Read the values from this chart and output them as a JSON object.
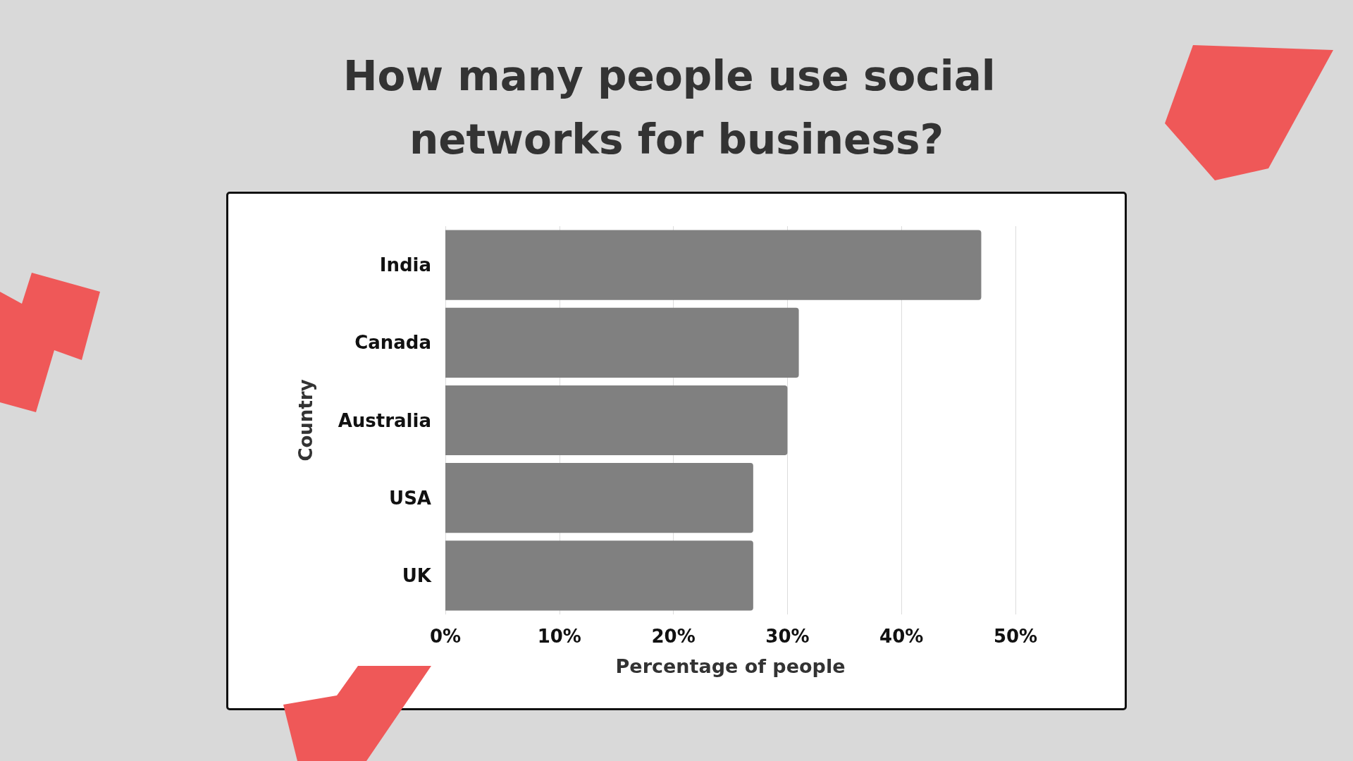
{
  "chart_data": {
    "type": "bar",
    "orientation": "horizontal",
    "title": "How many people use social networks for business?",
    "xlabel": "Percentage of people",
    "ylabel": "Country",
    "categories": [
      "India",
      "Canada",
      "Australia",
      "USA",
      "UK"
    ],
    "values": [
      47,
      31,
      30,
      27,
      27
    ],
    "color": "#808080",
    "xlim": [
      0,
      50
    ],
    "xticks": [
      {
        "value": 0,
        "label": "0%"
      },
      {
        "value": 10,
        "label": "10%"
      },
      {
        "value": 20,
        "label": "20%"
      },
      {
        "value": 30,
        "label": "30%"
      },
      {
        "value": 40,
        "label": "40%"
      },
      {
        "value": 50,
        "label": "50%"
      }
    ],
    "grid": "x"
  }
}
